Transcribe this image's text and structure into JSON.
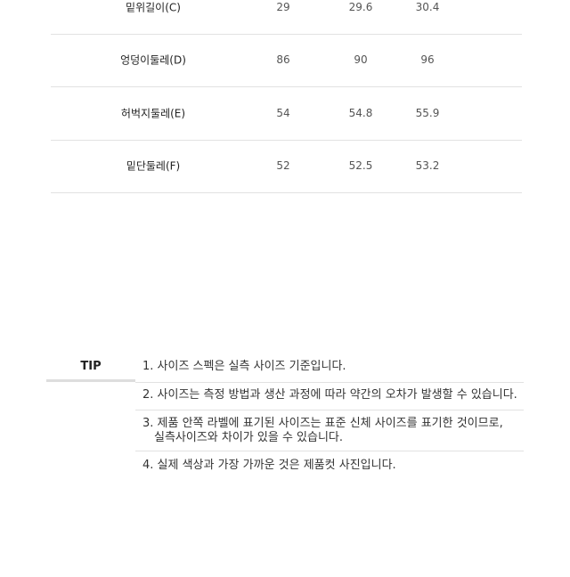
{
  "size_table": {
    "rows": [
      {
        "label": "밑위길이(C)",
        "values": [
          "29",
          "29.6",
          "30.4"
        ]
      },
      {
        "label": "엉덩이둘레(D)",
        "values": [
          "86",
          "90",
          "96"
        ]
      },
      {
        "label": "허벅지둘레(E)",
        "values": [
          "54",
          "54.8",
          "55.9"
        ]
      },
      {
        "label": "밑단둘레(F)",
        "values": [
          "52",
          "52.5",
          "53.2"
        ]
      }
    ]
  },
  "tip": {
    "title": "TIP",
    "items": [
      {
        "line1": "1. 사이즈 스펙은 실측 사이즈 기준입니다."
      },
      {
        "line1": "2. 사이즈는 측정 방법과 생산 과정에 따라 약간의 오차가 발생할 수 있습니다."
      },
      {
        "line1": "3. 제품 안쪽 라벨에 표기된 사이즈는 표준 신체 사이즈를 표기한 것이므로,",
        "line2": "실측사이즈와 차이가 있을 수 있습니다."
      },
      {
        "line1": "4. 실제 색상과 가장 가까운 것은 제품컷 사진입니다."
      }
    ]
  }
}
